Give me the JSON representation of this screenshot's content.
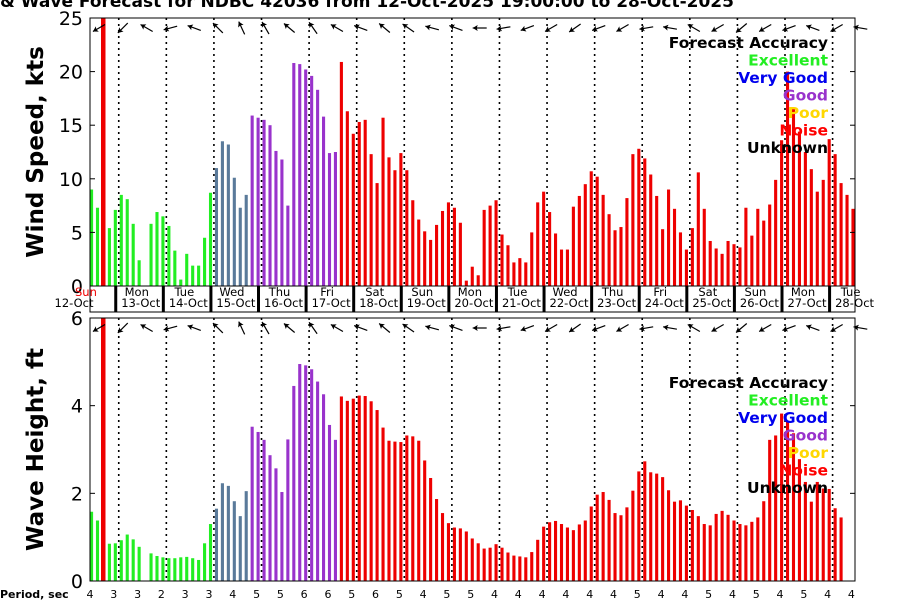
{
  "title": "& Wave Forecast for NDBC 42036 from 12-Oct-2025 19:00:00 to 28-Oct-2025",
  "period_label": "Period, sec",
  "marker_label": "Sun",
  "accuracy_legend": {
    "title": "Forecast Accuracy",
    "entries": [
      {
        "label": "Excellent",
        "color": "#22ee22"
      },
      {
        "label": "Very Good",
        "color": "#0000ee"
      },
      {
        "label": "Good",
        "color": "#9933cc"
      },
      {
        "label": "Poor",
        "color": "#ffd700"
      },
      {
        "label": "Noise",
        "color": "#ff0000"
      },
      {
        "label": "Unknown",
        "color": "#000000"
      }
    ]
  },
  "day_labels": [
    {
      "day": "Mon",
      "date": "13-Oct"
    },
    {
      "day": "Tue",
      "date": "14-Oct"
    },
    {
      "day": "Wed",
      "date": "15-Oct"
    },
    {
      "day": "Thu",
      "date": "16-Oct"
    },
    {
      "day": "Fri",
      "date": "17-Oct"
    },
    {
      "day": "Sat",
      "date": "18-Oct"
    },
    {
      "day": "Sun",
      "date": "19-Oct"
    },
    {
      "day": "Mon",
      "date": "20-Oct"
    },
    {
      "day": "Tue",
      "date": "21-Oct"
    },
    {
      "day": "Wed",
      "date": "22-Oct"
    },
    {
      "day": "Thu",
      "date": "23-Oct"
    },
    {
      "day": "Fri",
      "date": "24-Oct"
    },
    {
      "day": "Sat",
      "date": "25-Oct"
    },
    {
      "day": "Sun",
      "date": "26-Oct"
    },
    {
      "day": "Mon",
      "date": "27-Oct"
    },
    {
      "day": "Tue",
      "date": "28-Oct"
    }
  ],
  "start_date_label": "12-Oct",
  "chart_data": [
    {
      "type": "bar",
      "title": "Wind Speed",
      "ylabel": "Wind Speed, kts",
      "ylim": [
        0,
        25
      ],
      "yticks": [
        0,
        5,
        10,
        15,
        20,
        25
      ],
      "x_unit": "hours from 12-Oct 19:00 (3-hourly)",
      "values": [
        9.0,
        7.3,
        0,
        5.4,
        7.1,
        8.5,
        8.1,
        5.8,
        2.4,
        0,
        5.8,
        6.9,
        6.5,
        5.6,
        3.3,
        0.6,
        3.0,
        1.9,
        1.9,
        4.5,
        8.7,
        11.0,
        13.5,
        13.2,
        10.1,
        7.3,
        8.5,
        15.9,
        15.7,
        15.5,
        15.0,
        12.6,
        11.8,
        7.5,
        20.8,
        20.7,
        20.2,
        19.6,
        18.3,
        15.8,
        12.4,
        12.5,
        20.9,
        16.3,
        14.2,
        15.3,
        15.5,
        12.3,
        9.6,
        15.7,
        12.0,
        10.8,
        12.4,
        10.8,
        8.0,
        6.2,
        5.1,
        4.3,
        5.7,
        7.0,
        7.8,
        7.3,
        5.9,
        0.5,
        1.8,
        1.0,
        7.1,
        7.5,
        8.0,
        4.8,
        3.8,
        2.2,
        2.6,
        2.2,
        5.0,
        7.8,
        8.8,
        6.9,
        4.9,
        3.4,
        3.4,
        7.4,
        8.4,
        9.5,
        10.7,
        10.2,
        8.5,
        6.7,
        5.2,
        5.5,
        8.2,
        12.3,
        12.8,
        11.9,
        10.4,
        8.4,
        5.3,
        9.0,
        7.2,
        5.0,
        3.4,
        5.4,
        10.6,
        7.2,
        4.2,
        3.5,
        3.0,
        4.2,
        3.9,
        3.6,
        7.3,
        4.7,
        7.2,
        6.1,
        7.6,
        9.9,
        13.6,
        20.0,
        16.5,
        14.4,
        12.5,
        10.9,
        8.8,
        9.9,
        13.7,
        12.3,
        9.6,
        8.5,
        7.2
      ]
    },
    {
      "type": "bar",
      "title": "Wave Height",
      "ylabel": "Wave Height, ft",
      "ylim": [
        0,
        6
      ],
      "yticks": [
        0,
        2,
        4,
        6
      ],
      "x_unit": "hours from 12-Oct 19:00 (3-hourly)",
      "values": [
        1.58,
        1.38,
        0,
        0.85,
        0.86,
        0.93,
        1.06,
        0.95,
        0.78,
        0,
        0.63,
        0.57,
        0.54,
        0.52,
        0.52,
        0.54,
        0.55,
        0.52,
        0.48,
        0.86,
        1.3,
        1.65,
        2.23,
        2.17,
        1.82,
        1.48,
        2.05,
        3.52,
        3.4,
        3.22,
        2.87,
        2.57,
        2.03,
        3.23,
        4.45,
        4.95,
        4.92,
        4.83,
        4.55,
        4.26,
        3.56,
        3.22,
        4.21,
        4.11,
        4.16,
        4.23,
        4.22,
        4.1,
        3.9,
        3.5,
        3.2,
        3.18,
        3.17,
        3.32,
        3.3,
        3.2,
        2.75,
        2.35,
        1.87,
        1.55,
        1.32,
        1.22,
        1.2,
        1.13,
        0.97,
        0.86,
        0.74,
        0.76,
        0.84,
        0.76,
        0.65,
        0.58,
        0.56,
        0.54,
        0.66,
        0.94,
        1.24,
        1.34,
        1.37,
        1.3,
        1.22,
        1.16,
        1.29,
        1.38,
        1.7,
        1.97,
        2.03,
        1.85,
        1.55,
        1.5,
        1.68,
        2.06,
        2.5,
        2.73,
        2.48,
        2.45,
        2.37,
        2.07,
        1.81,
        1.84,
        1.72,
        1.62,
        1.48,
        1.3,
        1.27,
        1.53,
        1.6,
        1.51,
        1.38,
        1.3,
        1.27,
        1.35,
        1.45,
        1.82,
        3.22,
        3.32,
        3.82,
        3.64,
        3.37,
        2.78,
        2.26,
        1.81,
        2.26,
        2.11,
        2.1,
        1.66,
        1.45
      ]
    }
  ],
  "period_values": [
    4,
    3,
    3,
    2,
    3,
    3,
    4,
    5,
    5,
    6,
    6,
    5,
    6,
    5,
    4,
    5,
    5,
    4,
    4,
    4,
    4,
    4,
    4,
    5,
    4,
    4,
    5,
    4,
    5,
    4,
    5,
    4,
    4
  ]
}
